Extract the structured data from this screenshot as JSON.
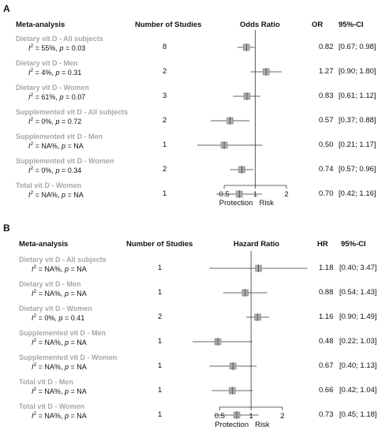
{
  "chart_data": [
    {
      "type": "forest",
      "panel": "A",
      "header": {
        "label_col": "Meta-analysis",
        "n_col": "Number of Studies",
        "plot_col": "Odds Ratio",
        "est_col": "OR",
        "ci_col": "95%-CI"
      },
      "xscale": "log",
      "xlim": [
        0.3,
        2.6
      ],
      "xticks": [
        0.5,
        1,
        2
      ],
      "xtick_labels": [
        "0.5",
        "1",
        "2"
      ],
      "reference_line": 1,
      "axis_labels": [
        "Protection",
        "Risk"
      ],
      "rows": [
        {
          "name": "Dietary vit D - All subjects",
          "i2": "55%",
          "p": "0.03",
          "n": "8",
          "est": 0.82,
          "lo": 0.67,
          "hi": 0.98,
          "est_text": "0.82",
          "ci_text": "[0.67; 0.98]"
        },
        {
          "name": "Dietary vit D - Men",
          "i2": "4%",
          "p": "0.31",
          "n": "2",
          "est": 1.27,
          "lo": 0.9,
          "hi": 1.8,
          "est_text": "1.27",
          "ci_text": "[0.90; 1.80]"
        },
        {
          "name": "Dietary vit D - Women",
          "i2": "61%",
          "p": "0.07",
          "n": "3",
          "est": 0.83,
          "lo": 0.61,
          "hi": 1.12,
          "est_text": "0.83",
          "ci_text": "[0.61; 1.12]"
        },
        {
          "name": "Supplemented vit D - All subjects",
          "i2": "0%",
          "p": "0.72",
          "n": "2",
          "est": 0.57,
          "lo": 0.37,
          "hi": 0.88,
          "est_text": "0.57",
          "ci_text": "[0.37; 0.88]"
        },
        {
          "name": "Supplemented vit D - Men",
          "i2": "NA%",
          "p": "NA",
          "n": "1",
          "est": 0.5,
          "lo": 0.21,
          "hi": 1.17,
          "est_text": "0.50",
          "ci_text": "[0.21; 1.17]"
        },
        {
          "name": "Supplemented vit D - Women",
          "i2": "0%",
          "p": "0.34",
          "n": "2",
          "est": 0.74,
          "lo": 0.57,
          "hi": 0.96,
          "est_text": "0.74",
          "ci_text": "[0.57; 0.96]"
        },
        {
          "name": "Total vit D - Women",
          "i2": "NA%",
          "p": "NA",
          "n": "1",
          "est": 0.7,
          "lo": 0.42,
          "hi": 1.16,
          "est_text": "0.70",
          "ci_text": "[0.42; 1.16]"
        }
      ]
    },
    {
      "type": "forest",
      "panel": "B",
      "header": {
        "label_col": "Meta-analysis",
        "n_col": "Number of Studies",
        "plot_col": "Hazard Ratio",
        "est_col": "HR",
        "ci_col": "95%-CI"
      },
      "xscale": "log",
      "xlim": [
        0.3,
        2.6
      ],
      "xticks": [
        0.5,
        1,
        2
      ],
      "xtick_labels": [
        "0.5",
        "1",
        "2"
      ],
      "reference_line": 1,
      "axis_labels": [
        "Protection",
        "Risk"
      ],
      "rows": [
        {
          "name": "Dietary vit D - All subjects",
          "i2": "NA%",
          "p": "NA",
          "n": "1",
          "est": 1.18,
          "lo": 0.4,
          "hi": 3.47,
          "est_text": "1.18",
          "ci_text": "[0.40; 3.47]"
        },
        {
          "name": "Dietary vit D - Men",
          "i2": "NA%",
          "p": "NA",
          "n": "1",
          "est": 0.88,
          "lo": 0.54,
          "hi": 1.43,
          "est_text": "0.88",
          "ci_text": "[0.54; 1.43]"
        },
        {
          "name": "Dietary vit D - Women",
          "i2": "0%",
          "p": "0.41",
          "n": "2",
          "est": 1.16,
          "lo": 0.9,
          "hi": 1.49,
          "est_text": "1.16",
          "ci_text": "[0.90; 1.49]"
        },
        {
          "name": "Supplemented vit D - Men",
          "i2": "NA%",
          "p": "NA",
          "n": "1",
          "est": 0.48,
          "lo": 0.22,
          "hi": 1.03,
          "est_text": "0.48",
          "ci_text": "[0.22; 1.03]"
        },
        {
          "name": "Supplemented vit D - Women",
          "i2": "NA%",
          "p": "NA",
          "n": "1",
          "est": 0.67,
          "lo": 0.4,
          "hi": 1.13,
          "est_text": "0.67",
          "ci_text": "[0.40; 1.13]"
        },
        {
          "name": "Total vit D - Men",
          "i2": "NA%",
          "p": "NA",
          "n": "1",
          "est": 0.66,
          "lo": 0.42,
          "hi": 1.04,
          "est_text": "0.66",
          "ci_text": "[0.42; 1.04]"
        },
        {
          "name": "Total vit D - Women",
          "i2": "NA%",
          "p": "NA",
          "n": "1",
          "est": 0.73,
          "lo": 0.45,
          "hi": 1.18,
          "est_text": "0.73",
          "ci_text": "[0.45; 1.18]"
        }
      ]
    }
  ]
}
